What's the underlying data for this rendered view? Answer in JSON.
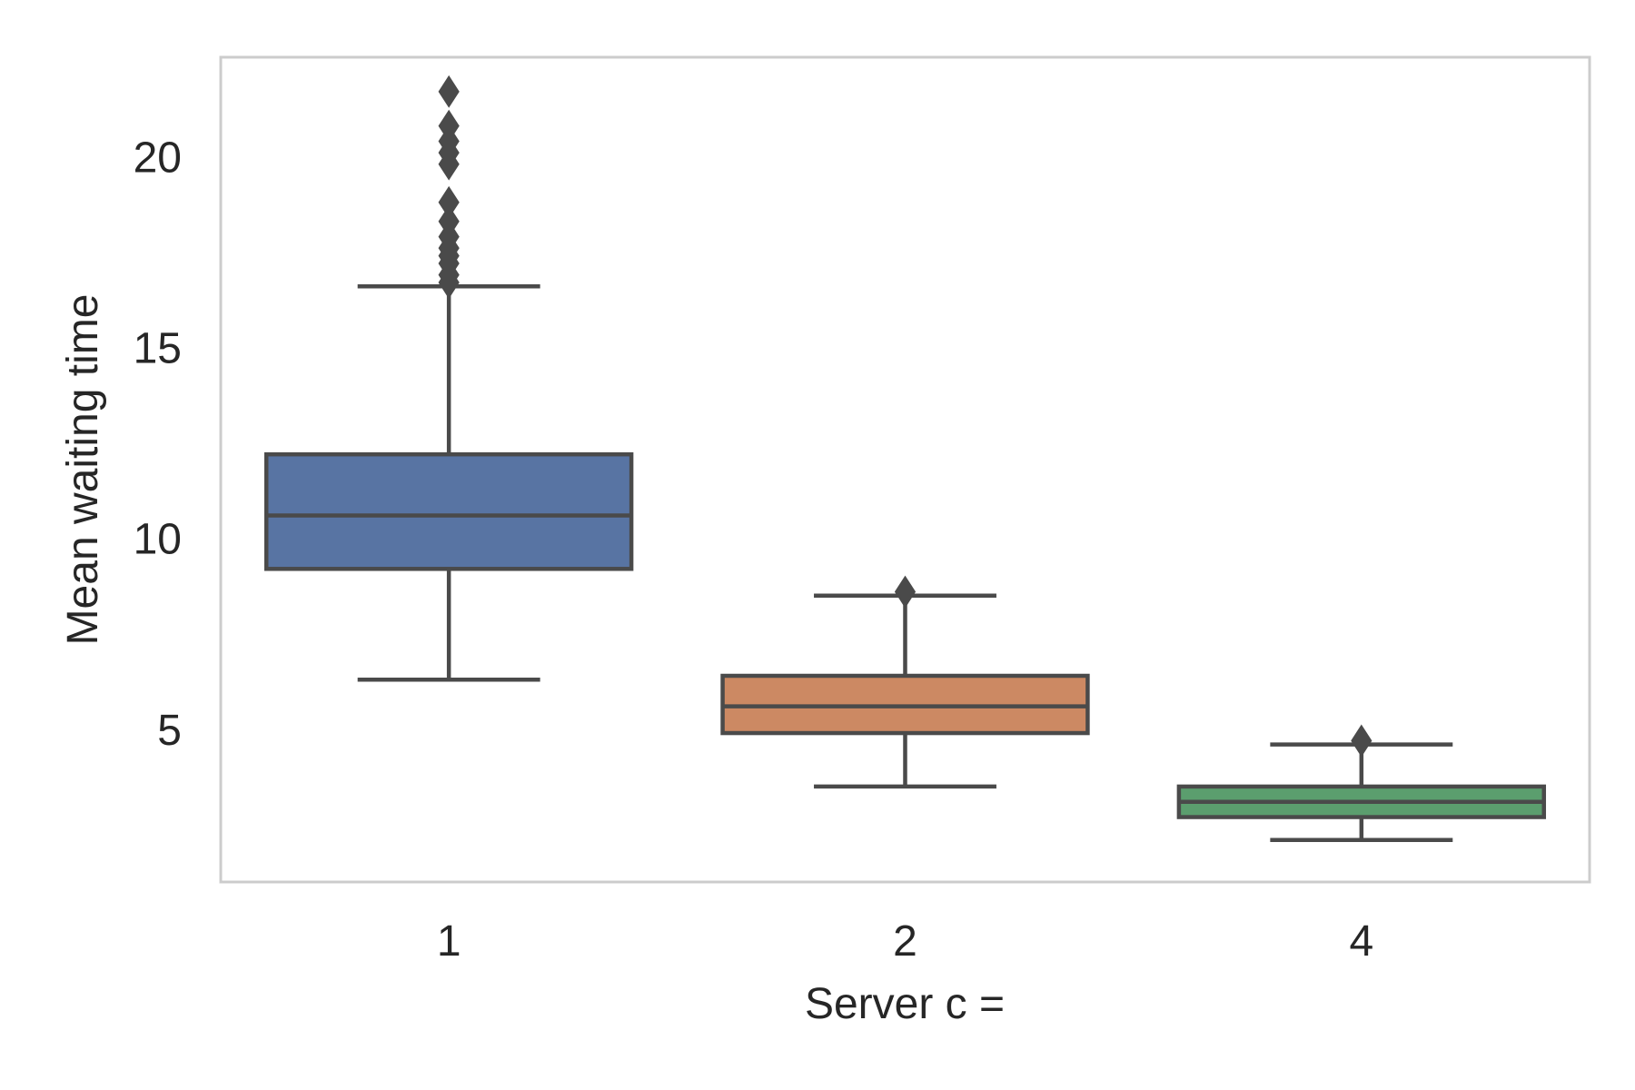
{
  "chart_data": {
    "type": "box",
    "title": "",
    "xlabel": "Server c =",
    "ylabel": "Mean waiting time",
    "categories": [
      "1",
      "2",
      "4"
    ],
    "yticks": [
      "5",
      "10",
      "15",
      "20"
    ],
    "ylim": [
      1.0,
      22.6
    ],
    "grid": false,
    "legend": "none",
    "colors": {
      "frame": "#cccccc",
      "line": "#4a4a4a",
      "text": "#262626",
      "boxes": [
        "#5874a3",
        "#cc8963",
        "#5b9e6e"
      ]
    },
    "series": [
      {
        "category": "1",
        "whisker_low": 6.3,
        "q1": 9.2,
        "median": 10.6,
        "q3": 12.2,
        "whisker_high": 16.6,
        "outliers": [
          16.7,
          16.9,
          17.2,
          17.4,
          17.6,
          17.9,
          18.3,
          18.8,
          19.8,
          20.1,
          20.4,
          20.8,
          21.7
        ]
      },
      {
        "category": "2",
        "whisker_low": 3.5,
        "q1": 4.9,
        "median": 5.6,
        "q3": 6.4,
        "whisker_high": 8.5,
        "outliers": [
          8.6
        ]
      },
      {
        "category": "4",
        "whisker_low": 2.1,
        "q1": 2.7,
        "median": 3.1,
        "q3": 3.5,
        "whisker_high": 4.6,
        "outliers": [
          4.7
        ]
      }
    ]
  }
}
